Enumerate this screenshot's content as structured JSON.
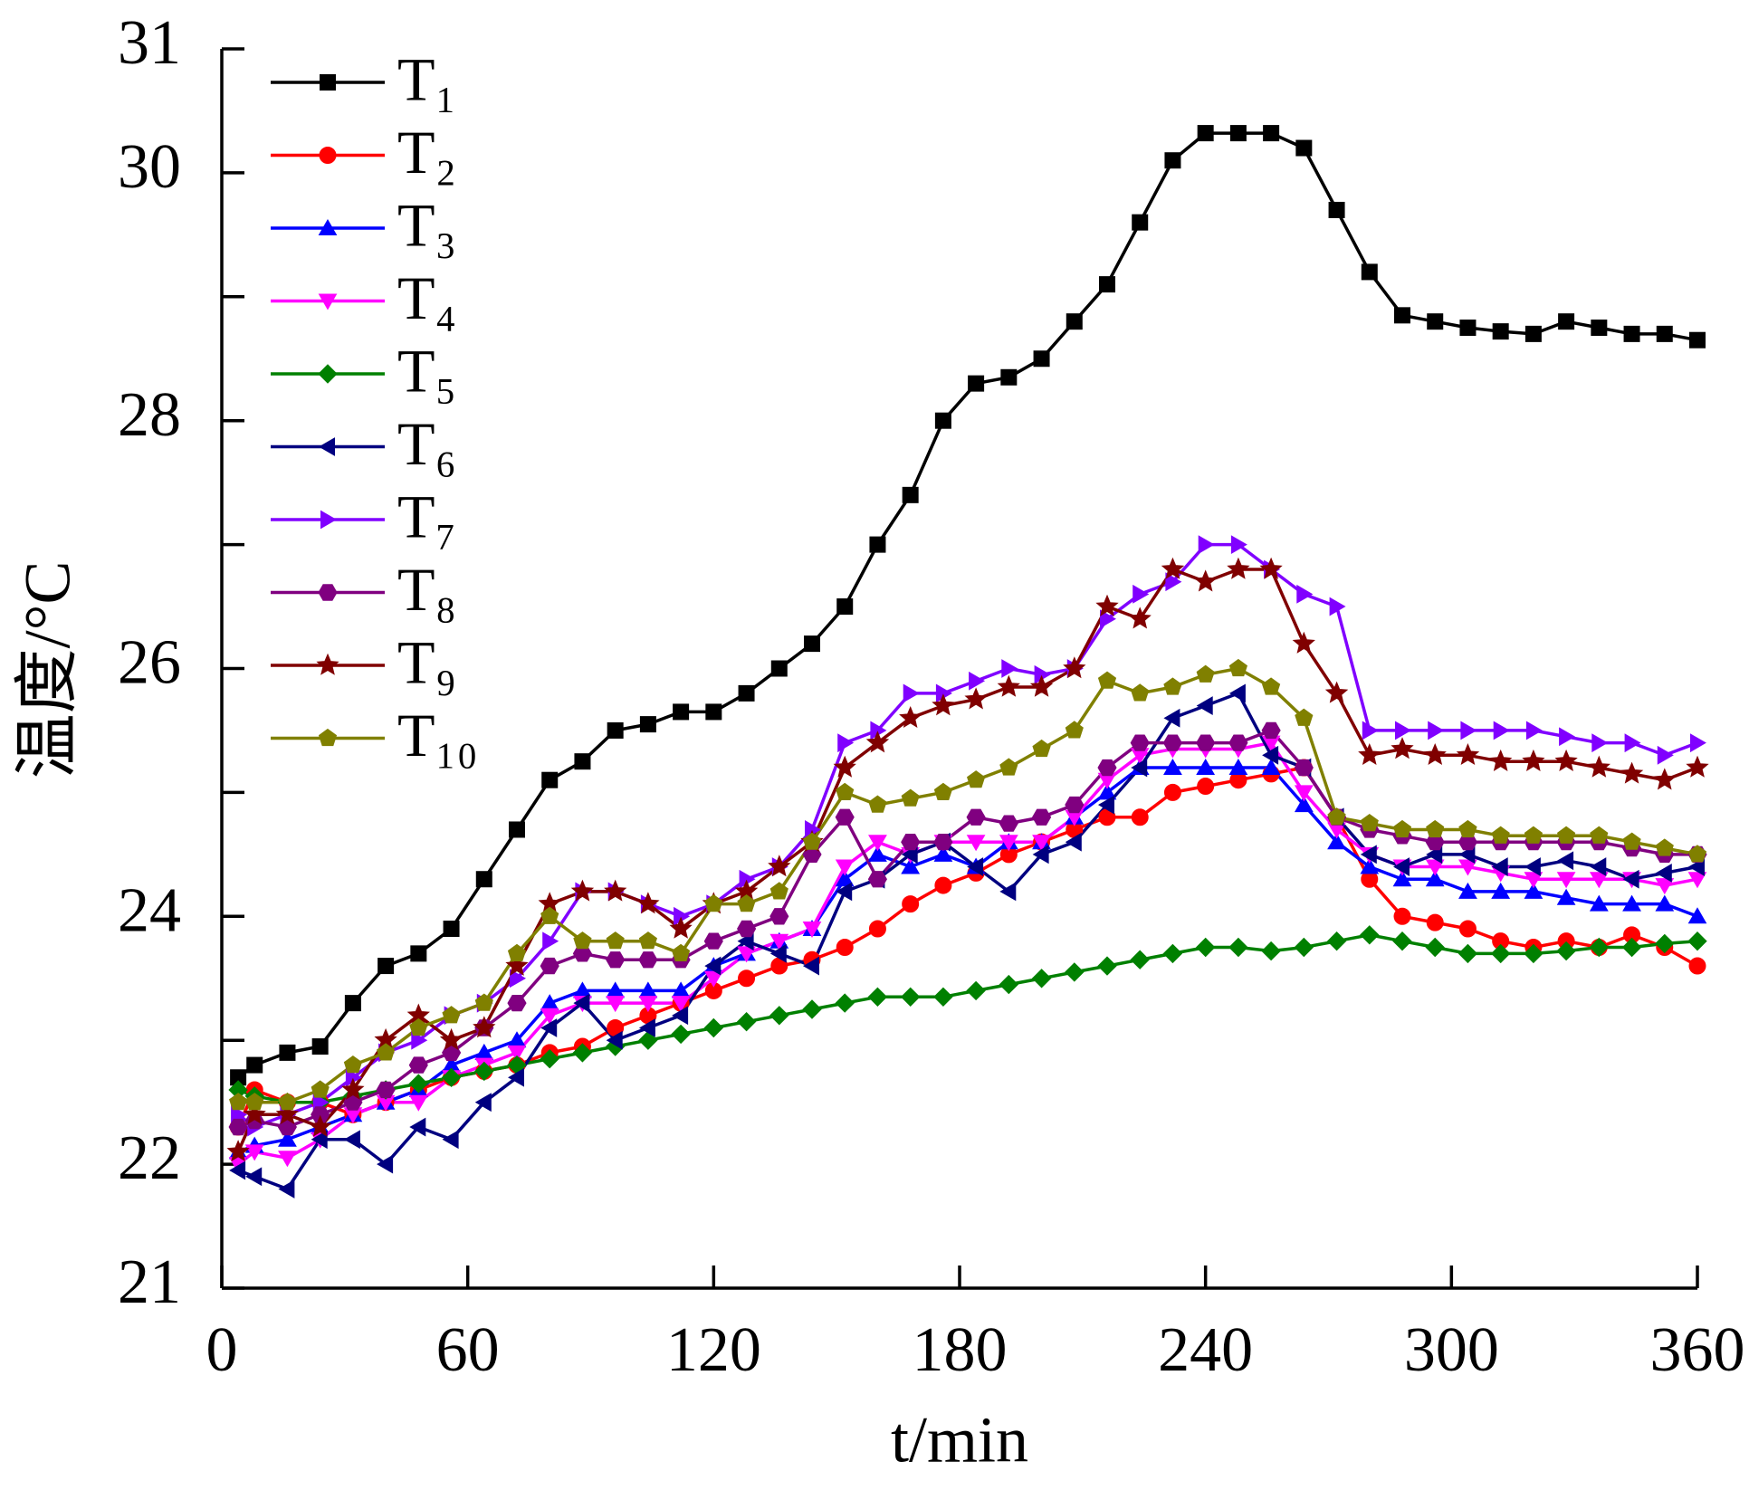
{
  "chart_data": {
    "type": "line",
    "xlabel": "t/min",
    "ylabel": "温度/°C",
    "x": [
      4,
      8,
      16,
      24,
      32,
      40,
      48,
      56,
      64,
      72,
      80,
      88,
      96,
      104,
      112,
      120,
      128,
      136,
      144,
      152,
      160,
      168,
      176,
      184,
      192,
      200,
      208,
      216,
      224,
      232,
      240,
      248,
      256,
      264,
      272,
      280,
      288,
      296,
      304,
      312,
      320,
      328,
      336,
      344,
      352,
      360
    ],
    "xlim": [
      0,
      360
    ],
    "xticks": [
      0,
      60,
      120,
      180,
      240,
      300,
      360
    ],
    "ylim": [
      21,
      31
    ],
    "yticks": [
      21,
      22,
      24,
      26,
      28,
      30,
      31
    ],
    "yminor_ticks": [
      23,
      25,
      27,
      29
    ],
    "legend": "upper left",
    "series": [
      {
        "name": "T₁",
        "color": "#000000",
        "marker": "square",
        "values": [
          22.7,
          22.8,
          22.9,
          22.95,
          23.3,
          23.6,
          23.7,
          23.9,
          24.3,
          24.7,
          25.1,
          25.25,
          25.5,
          25.55,
          25.65,
          25.65,
          25.8,
          26.0,
          26.2,
          26.5,
          27.0,
          27.4,
          28.0,
          28.3,
          28.35,
          28.5,
          28.8,
          29.1,
          29.6,
          30.1,
          30.32,
          30.32,
          30.32,
          30.2,
          29.7,
          29.2,
          28.85,
          28.8,
          28.75,
          28.72,
          28.7,
          28.8,
          28.75,
          28.7,
          28.7,
          28.65
        ]
      },
      {
        "name": "T₂",
        "color": "#ff0000",
        "marker": "circle",
        "values": [
          22.3,
          22.6,
          22.5,
          22.5,
          22.4,
          22.5,
          22.6,
          22.7,
          22.75,
          22.8,
          22.9,
          22.95,
          23.1,
          23.2,
          23.3,
          23.4,
          23.5,
          23.6,
          23.65,
          23.75,
          23.9,
          24.1,
          24.25,
          24.35,
          24.5,
          24.6,
          24.7,
          24.8,
          24.8,
          25.0,
          25.05,
          25.1,
          25.15,
          25.2,
          24.8,
          24.3,
          24.0,
          23.95,
          23.9,
          23.8,
          23.75,
          23.8,
          23.75,
          23.85,
          23.75,
          23.6
        ]
      },
      {
        "name": "T₃",
        "color": "#0000ff",
        "marker": "triangle-up",
        "values": [
          22.1,
          22.15,
          22.2,
          22.3,
          22.4,
          22.5,
          22.6,
          22.8,
          22.9,
          23.0,
          23.3,
          23.4,
          23.4,
          23.4,
          23.4,
          23.6,
          23.7,
          23.8,
          23.9,
          24.3,
          24.5,
          24.4,
          24.5,
          24.4,
          24.6,
          24.6,
          24.8,
          25.0,
          25.2,
          25.2,
          25.2,
          25.2,
          25.2,
          24.9,
          24.6,
          24.4,
          24.3,
          24.3,
          24.2,
          24.2,
          24.2,
          24.15,
          24.1,
          24.1,
          24.1,
          24.0
        ]
      },
      {
        "name": "T₄",
        "color": "#ff00ff",
        "marker": "triangle-down",
        "values": [
          22.0,
          22.1,
          22.05,
          22.2,
          22.4,
          22.5,
          22.5,
          22.7,
          22.8,
          22.9,
          23.2,
          23.3,
          23.3,
          23.3,
          23.3,
          23.5,
          23.7,
          23.8,
          23.9,
          24.4,
          24.6,
          24.5,
          24.6,
          24.6,
          24.6,
          24.6,
          24.8,
          25.1,
          25.3,
          25.35,
          25.35,
          25.35,
          25.4,
          25.0,
          24.7,
          24.5,
          24.4,
          24.4,
          24.4,
          24.35,
          24.3,
          24.3,
          24.3,
          24.3,
          24.25,
          24.3
        ]
      },
      {
        "name": "T₅",
        "color": "#008000",
        "marker": "diamond",
        "values": [
          22.6,
          22.55,
          22.5,
          22.5,
          22.55,
          22.6,
          22.65,
          22.7,
          22.75,
          22.8,
          22.85,
          22.9,
          22.95,
          23.0,
          23.05,
          23.1,
          23.15,
          23.2,
          23.25,
          23.3,
          23.35,
          23.35,
          23.35,
          23.4,
          23.45,
          23.5,
          23.55,
          23.6,
          23.65,
          23.7,
          23.75,
          23.75,
          23.72,
          23.75,
          23.8,
          23.85,
          23.8,
          23.75,
          23.7,
          23.7,
          23.7,
          23.72,
          23.75,
          23.75,
          23.78,
          23.8
        ]
      },
      {
        "name": "T₆",
        "color": "#000080",
        "marker": "triangle-left",
        "values": [
          21.95,
          21.9,
          21.8,
          22.2,
          22.2,
          22.0,
          22.3,
          22.2,
          22.5,
          22.7,
          23.1,
          23.3,
          23.0,
          23.1,
          23.2,
          23.6,
          23.8,
          23.7,
          23.6,
          24.2,
          24.3,
          24.5,
          24.6,
          24.4,
          24.2,
          24.5,
          24.6,
          24.9,
          25.2,
          25.6,
          25.7,
          25.8,
          25.3,
          25.2,
          24.8,
          24.5,
          24.4,
          24.5,
          24.5,
          24.4,
          24.4,
          24.45,
          24.4,
          24.3,
          24.35,
          24.4
        ]
      },
      {
        "name": "T₇",
        "color": "#8000ff",
        "marker": "triangle-right",
        "values": [
          22.4,
          22.3,
          22.4,
          22.5,
          22.7,
          22.9,
          23.0,
          23.2,
          23.3,
          23.5,
          23.8,
          24.2,
          24.2,
          24.1,
          24.0,
          24.1,
          24.3,
          24.4,
          24.7,
          25.4,
          25.5,
          25.8,
          25.8,
          25.9,
          26.0,
          25.95,
          26.0,
          26.4,
          26.6,
          26.7,
          27.0,
          27.0,
          26.8,
          26.6,
          26.5,
          25.5,
          25.5,
          25.5,
          25.5,
          25.5,
          25.5,
          25.45,
          25.4,
          25.4,
          25.3,
          25.4
        ]
      },
      {
        "name": "T₈",
        "color": "#800080",
        "marker": "hexagon",
        "values": [
          22.3,
          22.35,
          22.3,
          22.4,
          22.5,
          22.6,
          22.8,
          22.9,
          23.1,
          23.3,
          23.6,
          23.7,
          23.65,
          23.65,
          23.65,
          23.8,
          23.9,
          24.0,
          24.5,
          24.8,
          24.3,
          24.6,
          24.6,
          24.8,
          24.75,
          24.8,
          24.9,
          25.2,
          25.4,
          25.4,
          25.4,
          25.4,
          25.5,
          25.2,
          24.8,
          24.7,
          24.65,
          24.6,
          24.6,
          24.6,
          24.6,
          24.6,
          24.6,
          24.55,
          24.5,
          24.5
        ]
      },
      {
        "name": "T₉",
        "color": "#800000",
        "marker": "star",
        "values": [
          22.1,
          22.4,
          22.4,
          22.3,
          22.6,
          23.0,
          23.2,
          23.0,
          23.1,
          23.6,
          24.1,
          24.2,
          24.2,
          24.1,
          23.9,
          24.1,
          24.2,
          24.4,
          24.6,
          25.2,
          25.4,
          25.6,
          25.7,
          25.75,
          25.85,
          25.85,
          26.0,
          26.5,
          26.4,
          26.8,
          26.7,
          26.8,
          26.8,
          26.2,
          25.8,
          25.3,
          25.35,
          25.3,
          25.3,
          25.25,
          25.25,
          25.25,
          25.2,
          25.15,
          25.1,
          25.2
        ]
      },
      {
        "name": "T₁₀",
        "color": "#808000",
        "marker": "pentagon",
        "values": [
          22.5,
          22.5,
          22.5,
          22.6,
          22.8,
          22.9,
          23.1,
          23.2,
          23.3,
          23.7,
          24.0,
          23.8,
          23.8,
          23.8,
          23.7,
          24.1,
          24.1,
          24.2,
          24.6,
          25.0,
          24.9,
          24.95,
          25.0,
          25.1,
          25.2,
          25.35,
          25.5,
          25.9,
          25.8,
          25.85,
          25.95,
          26.0,
          25.85,
          25.6,
          24.8,
          24.75,
          24.7,
          24.7,
          24.7,
          24.65,
          24.65,
          24.65,
          24.65,
          24.6,
          24.55,
          24.5
        ]
      }
    ]
  }
}
